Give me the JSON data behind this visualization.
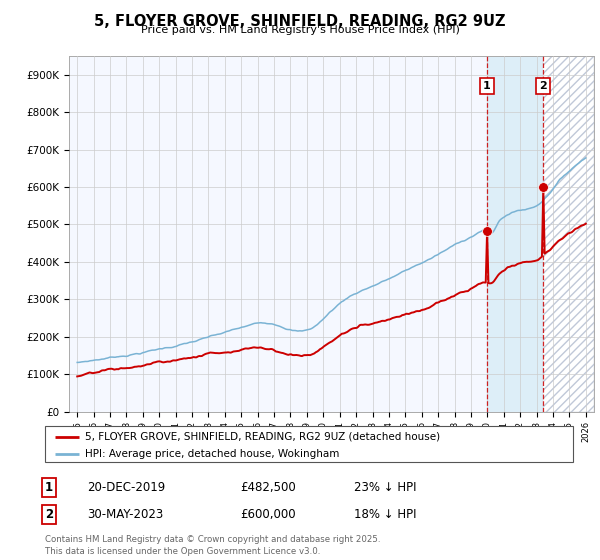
{
  "title": "5, FLOYER GROVE, SHINFIELD, READING, RG2 9UZ",
  "subtitle": "Price paid vs. HM Land Registry's House Price Index (HPI)",
  "hpi_label": "HPI: Average price, detached house, Wokingham",
  "price_label": "5, FLOYER GROVE, SHINFIELD, READING, RG2 9UZ (detached house)",
  "footer": "Contains HM Land Registry data © Crown copyright and database right 2025.\nThis data is licensed under the Open Government Licence v3.0.",
  "transaction1_date": "20-DEC-2019",
  "transaction1_price": "£482,500",
  "transaction1_note": "23% ↓ HPI",
  "transaction1_year": 2019.97,
  "transaction1_price_val": 482500,
  "transaction2_date": "30-MAY-2023",
  "transaction2_price": "£600,000",
  "transaction2_note": "18% ↓ HPI",
  "transaction2_year": 2023.41,
  "transaction2_price_val": 600000,
  "hpi_color": "#7ab3d4",
  "price_color": "#cc0000",
  "dashed_color": "#cc0000",
  "shade_color": "#ddeef8",
  "background_color": "#ffffff",
  "grid_color": "#cccccc",
  "plot_bg_color": "#f5f8ff",
  "ylim": [
    0,
    950000
  ],
  "xlim_start": 1994.5,
  "xlim_end": 2026.5,
  "yticks": [
    0,
    100000,
    200000,
    300000,
    400000,
    500000,
    600000,
    700000,
    800000,
    900000
  ],
  "ytick_labels": [
    "£0",
    "£100K",
    "£200K",
    "£300K",
    "£400K",
    "£500K",
    "£600K",
    "£700K",
    "£800K",
    "£900K"
  ]
}
